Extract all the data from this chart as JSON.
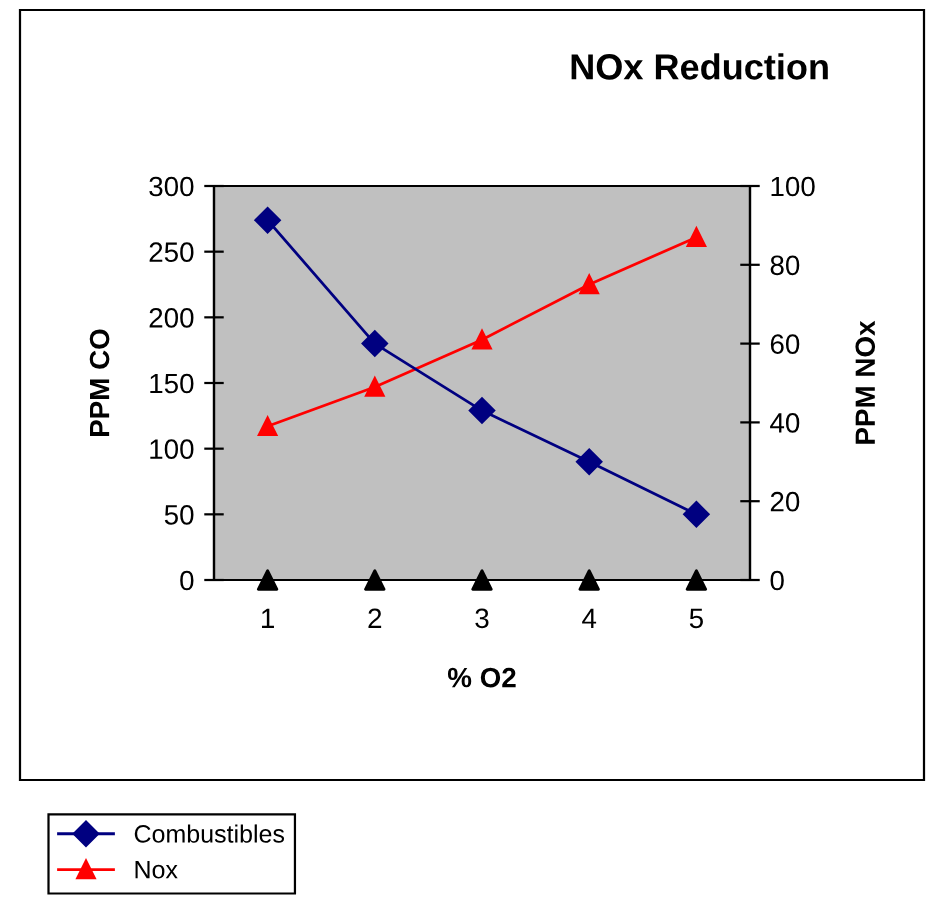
{
  "chart_data": {
    "type": "line",
    "title": "NOx Reduction",
    "xlabel": "% O2",
    "ylabel": "PPM CO",
    "y2label": "PPM NOx",
    "categories": [
      "1",
      "2",
      "3",
      "4",
      "5"
    ],
    "series": [
      {
        "name": "Combustibles",
        "color": "#000080",
        "marker": "diamond",
        "values": [
          274,
          180,
          129,
          90,
          50
        ]
      },
      {
        "name": "Nox",
        "color": "#ff0000",
        "marker": "triangle",
        "axis": "y2",
        "values": [
          39,
          49,
          61,
          75,
          87
        ]
      },
      {
        "color": "#000000",
        "marker": "triangle",
        "type": "scatter",
        "values": [
          0,
          0,
          0,
          0,
          0
        ]
      }
    ],
    "ylim": [
      0,
      300
    ],
    "yticks": [
      0,
      50,
      100,
      150,
      200,
      250,
      300
    ],
    "y2lim": [
      0,
      100
    ],
    "y2ticks": [
      0,
      20,
      40,
      60,
      80,
      100
    ],
    "grid": false,
    "legend": "bottom left"
  }
}
